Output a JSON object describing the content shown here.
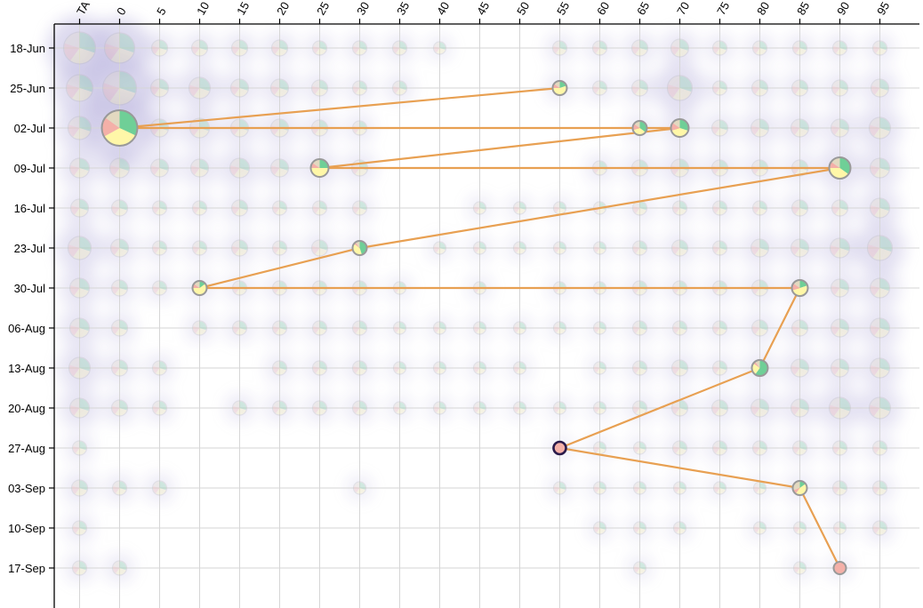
{
  "chart_data": {
    "type": "scatter",
    "title": "",
    "x_categories": [
      "TA",
      "0",
      "5",
      "10",
      "15",
      "20",
      "25",
      "30",
      "35",
      "40",
      "45",
      "50",
      "55",
      "60",
      "65",
      "70",
      "75",
      "80",
      "85",
      "90",
      "95"
    ],
    "y_categories": [
      "18-Jun",
      "25-Jun",
      "02-Jul",
      "09-Jul",
      "16-Jul",
      "23-Jul",
      "30-Jul",
      "06-Aug",
      "13-Aug",
      "20-Aug",
      "27-Aug",
      "03-Sep",
      "10-Sep",
      "17-Sep"
    ],
    "x_axis_position": "top",
    "y_axis_position": "left",
    "grid": true,
    "colors": {
      "green": "#6fcf97",
      "yellow": "#fff7a8",
      "pink": "#f4b0a8",
      "tan": "#e3d9c0",
      "path": "#e8a052",
      "outline": "#999999",
      "current_outline": "#2a1a4a",
      "blur": "#8c82c8"
    },
    "path": [
      {
        "x": "55",
        "y": "25-Jun",
        "r": 8,
        "slices": [
          0.2,
          0.55,
          0.1,
          0.15
        ]
      },
      {
        "x": "0",
        "y": "02-Jul",
        "r": 20,
        "slices": [
          0.32,
          0.35,
          0.18,
          0.15
        ]
      },
      {
        "x": "65",
        "y": "02-Jul",
        "r": 8,
        "slices": [
          0.35,
          0.35,
          0.15,
          0.15
        ]
      },
      {
        "x": "70",
        "y": "02-Jul",
        "r": 10,
        "slices": [
          0.3,
          0.4,
          0.15,
          0.15
        ]
      },
      {
        "x": "25",
        "y": "09-Jul",
        "r": 10,
        "slices": [
          0.25,
          0.5,
          0.1,
          0.15
        ]
      },
      {
        "x": "90",
        "y": "09-Jul",
        "r": 12,
        "slices": [
          0.35,
          0.4,
          0.1,
          0.15
        ]
      },
      {
        "x": "30",
        "y": "23-Jul",
        "r": 8,
        "slices": [
          0.45,
          0.4,
          0.05,
          0.1
        ]
      },
      {
        "x": "10",
        "y": "30-Jul",
        "r": 8,
        "slices": [
          0.15,
          0.6,
          0.1,
          0.15
        ]
      },
      {
        "x": "85",
        "y": "30-Jul",
        "r": 9,
        "slices": [
          0.2,
          0.5,
          0.15,
          0.15
        ]
      },
      {
        "x": "80",
        "y": "13-Aug",
        "r": 9,
        "slices": [
          0.6,
          0.25,
          0.05,
          0.1
        ]
      },
      {
        "x": "55",
        "y": "27-Aug",
        "r": 7,
        "slices": [
          0.0,
          0.0,
          1.0,
          0.0
        ],
        "current": true
      },
      {
        "x": "85",
        "y": "03-Sep",
        "r": 8,
        "slices": [
          0.15,
          0.45,
          0.1,
          0.3
        ]
      },
      {
        "x": "90",
        "y": "17-Sep",
        "r": 7,
        "slices": [
          0.0,
          0.0,
          1.0,
          0.0
        ]
      }
    ],
    "background_points": [
      {
        "x": "TA",
        "y": "18-Jun",
        "r": 18
      },
      {
        "x": "0",
        "y": "18-Jun",
        "r": 17
      },
      {
        "x": "5",
        "y": "18-Jun",
        "r": 9
      },
      {
        "x": "10",
        "y": "18-Jun",
        "r": 9
      },
      {
        "x": "15",
        "y": "18-Jun",
        "r": 9
      },
      {
        "x": "20",
        "y": "18-Jun",
        "r": 9
      },
      {
        "x": "25",
        "y": "18-Jun",
        "r": 8
      },
      {
        "x": "30",
        "y": "18-Jun",
        "r": 8
      },
      {
        "x": "35",
        "y": "18-Jun",
        "r": 8
      },
      {
        "x": "40",
        "y": "18-Jun",
        "r": 7
      },
      {
        "x": "55",
        "y": "18-Jun",
        "r": 8
      },
      {
        "x": "60",
        "y": "18-Jun",
        "r": 8
      },
      {
        "x": "65",
        "y": "18-Jun",
        "r": 9
      },
      {
        "x": "70",
        "y": "18-Jun",
        "r": 10
      },
      {
        "x": "75",
        "y": "18-Jun",
        "r": 8
      },
      {
        "x": "80",
        "y": "18-Jun",
        "r": 8
      },
      {
        "x": "85",
        "y": "18-Jun",
        "r": 8
      },
      {
        "x": "90",
        "y": "18-Jun",
        "r": 8
      },
      {
        "x": "95",
        "y": "18-Jun",
        "r": 8
      },
      {
        "x": "TA",
        "y": "25-Jun",
        "r": 15
      },
      {
        "x": "0",
        "y": "25-Jun",
        "r": 19
      },
      {
        "x": "5",
        "y": "25-Jun",
        "r": 10
      },
      {
        "x": "10",
        "y": "25-Jun",
        "r": 12
      },
      {
        "x": "15",
        "y": "25-Jun",
        "r": 10
      },
      {
        "x": "20",
        "y": "25-Jun",
        "r": 10
      },
      {
        "x": "25",
        "y": "25-Jun",
        "r": 9
      },
      {
        "x": "30",
        "y": "25-Jun",
        "r": 8
      },
      {
        "x": "35",
        "y": "25-Jun",
        "r": 8
      },
      {
        "x": "60",
        "y": "25-Jun",
        "r": 8
      },
      {
        "x": "65",
        "y": "25-Jun",
        "r": 9
      },
      {
        "x": "70",
        "y": "25-Jun",
        "r": 14
      },
      {
        "x": "75",
        "y": "25-Jun",
        "r": 8
      },
      {
        "x": "80",
        "y": "25-Jun",
        "r": 9
      },
      {
        "x": "85",
        "y": "25-Jun",
        "r": 9
      },
      {
        "x": "90",
        "y": "25-Jun",
        "r": 9
      },
      {
        "x": "95",
        "y": "25-Jun",
        "r": 10
      },
      {
        "x": "TA",
        "y": "02-Jul",
        "r": 13
      },
      {
        "x": "5",
        "y": "02-Jul",
        "r": 10
      },
      {
        "x": "10",
        "y": "02-Jul",
        "r": 11
      },
      {
        "x": "15",
        "y": "02-Jul",
        "r": 10
      },
      {
        "x": "20",
        "y": "02-Jul",
        "r": 10
      },
      {
        "x": "25",
        "y": "02-Jul",
        "r": 9
      },
      {
        "x": "30",
        "y": "02-Jul",
        "r": 8
      },
      {
        "x": "75",
        "y": "02-Jul",
        "r": 9
      },
      {
        "x": "80",
        "y": "02-Jul",
        "r": 10
      },
      {
        "x": "85",
        "y": "02-Jul",
        "r": 10
      },
      {
        "x": "90",
        "y": "02-Jul",
        "r": 10
      },
      {
        "x": "95",
        "y": "02-Jul",
        "r": 12
      },
      {
        "x": "TA",
        "y": "09-Jul",
        "r": 11
      },
      {
        "x": "0",
        "y": "09-Jul",
        "r": 11
      },
      {
        "x": "5",
        "y": "09-Jul",
        "r": 10
      },
      {
        "x": "10",
        "y": "09-Jul",
        "r": 10
      },
      {
        "x": "15",
        "y": "09-Jul",
        "r": 11
      },
      {
        "x": "20",
        "y": "09-Jul",
        "r": 10
      },
      {
        "x": "30",
        "y": "09-Jul",
        "r": 9
      },
      {
        "x": "60",
        "y": "09-Jul",
        "r": 8
      },
      {
        "x": "65",
        "y": "09-Jul",
        "r": 9
      },
      {
        "x": "70",
        "y": "09-Jul",
        "r": 10
      },
      {
        "x": "75",
        "y": "09-Jul",
        "r": 9
      },
      {
        "x": "80",
        "y": "09-Jul",
        "r": 9
      },
      {
        "x": "85",
        "y": "09-Jul",
        "r": 9
      },
      {
        "x": "95",
        "y": "09-Jul",
        "r": 11
      },
      {
        "x": "TA",
        "y": "16-Jul",
        "r": 10
      },
      {
        "x": "0",
        "y": "16-Jul",
        "r": 9
      },
      {
        "x": "5",
        "y": "16-Jul",
        "r": 8
      },
      {
        "x": "10",
        "y": "16-Jul",
        "r": 8
      },
      {
        "x": "15",
        "y": "16-Jul",
        "r": 9
      },
      {
        "x": "20",
        "y": "16-Jul",
        "r": 8
      },
      {
        "x": "25",
        "y": "16-Jul",
        "r": 8
      },
      {
        "x": "30",
        "y": "16-Jul",
        "r": 8
      },
      {
        "x": "45",
        "y": "16-Jul",
        "r": 7
      },
      {
        "x": "50",
        "y": "16-Jul",
        "r": 7
      },
      {
        "x": "55",
        "y": "16-Jul",
        "r": 7
      },
      {
        "x": "60",
        "y": "16-Jul",
        "r": 7
      },
      {
        "x": "65",
        "y": "16-Jul",
        "r": 8
      },
      {
        "x": "70",
        "y": "16-Jul",
        "r": 8
      },
      {
        "x": "75",
        "y": "16-Jul",
        "r": 8
      },
      {
        "x": "80",
        "y": "16-Jul",
        "r": 8
      },
      {
        "x": "85",
        "y": "16-Jul",
        "r": 9
      },
      {
        "x": "90",
        "y": "16-Jul",
        "r": 9
      },
      {
        "x": "95",
        "y": "16-Jul",
        "r": 11
      },
      {
        "x": "TA",
        "y": "23-Jul",
        "r": 13
      },
      {
        "x": "0",
        "y": "23-Jul",
        "r": 10
      },
      {
        "x": "5",
        "y": "23-Jul",
        "r": 8
      },
      {
        "x": "10",
        "y": "23-Jul",
        "r": 8
      },
      {
        "x": "15",
        "y": "23-Jul",
        "r": 9
      },
      {
        "x": "20",
        "y": "23-Jul",
        "r": 8
      },
      {
        "x": "25",
        "y": "23-Jul",
        "r": 9
      },
      {
        "x": "40",
        "y": "23-Jul",
        "r": 7
      },
      {
        "x": "45",
        "y": "23-Jul",
        "r": 7
      },
      {
        "x": "50",
        "y": "23-Jul",
        "r": 7
      },
      {
        "x": "55",
        "y": "23-Jul",
        "r": 7
      },
      {
        "x": "60",
        "y": "23-Jul",
        "r": 7
      },
      {
        "x": "65",
        "y": "23-Jul",
        "r": 8
      },
      {
        "x": "70",
        "y": "23-Jul",
        "r": 9
      },
      {
        "x": "75",
        "y": "23-Jul",
        "r": 8
      },
      {
        "x": "80",
        "y": "23-Jul",
        "r": 10
      },
      {
        "x": "85",
        "y": "23-Jul",
        "r": 10
      },
      {
        "x": "90",
        "y": "23-Jul",
        "r": 11
      },
      {
        "x": "95",
        "y": "23-Jul",
        "r": 14
      },
      {
        "x": "TA",
        "y": "30-Jul",
        "r": 11
      },
      {
        "x": "0",
        "y": "30-Jul",
        "r": 9
      },
      {
        "x": "5",
        "y": "30-Jul",
        "r": 8
      },
      {
        "x": "15",
        "y": "30-Jul",
        "r": 8
      },
      {
        "x": "20",
        "y": "30-Jul",
        "r": 8
      },
      {
        "x": "25",
        "y": "30-Jul",
        "r": 8
      },
      {
        "x": "30",
        "y": "30-Jul",
        "r": 8
      },
      {
        "x": "35",
        "y": "30-Jul",
        "r": 7
      },
      {
        "x": "45",
        "y": "30-Jul",
        "r": 7
      },
      {
        "x": "55",
        "y": "30-Jul",
        "r": 7
      },
      {
        "x": "60",
        "y": "30-Jul",
        "r": 7
      },
      {
        "x": "65",
        "y": "30-Jul",
        "r": 8
      },
      {
        "x": "70",
        "y": "30-Jul",
        "r": 8
      },
      {
        "x": "75",
        "y": "30-Jul",
        "r": 8
      },
      {
        "x": "80",
        "y": "30-Jul",
        "r": 9
      },
      {
        "x": "90",
        "y": "30-Jul",
        "r": 10
      },
      {
        "x": "95",
        "y": "30-Jul",
        "r": 11
      },
      {
        "x": "TA",
        "y": "06-Aug",
        "r": 11
      },
      {
        "x": "0",
        "y": "06-Aug",
        "r": 9
      },
      {
        "x": "10",
        "y": "06-Aug",
        "r": 8
      },
      {
        "x": "15",
        "y": "06-Aug",
        "r": 8
      },
      {
        "x": "20",
        "y": "06-Aug",
        "r": 8
      },
      {
        "x": "25",
        "y": "06-Aug",
        "r": 8
      },
      {
        "x": "30",
        "y": "06-Aug",
        "r": 8
      },
      {
        "x": "35",
        "y": "06-Aug",
        "r": 7
      },
      {
        "x": "40",
        "y": "06-Aug",
        "r": 7
      },
      {
        "x": "45",
        "y": "06-Aug",
        "r": 7
      },
      {
        "x": "50",
        "y": "06-Aug",
        "r": 7
      },
      {
        "x": "55",
        "y": "06-Aug",
        "r": 7
      },
      {
        "x": "60",
        "y": "06-Aug",
        "r": 7
      },
      {
        "x": "65",
        "y": "06-Aug",
        "r": 8
      },
      {
        "x": "70",
        "y": "06-Aug",
        "r": 8
      },
      {
        "x": "75",
        "y": "06-Aug",
        "r": 8
      },
      {
        "x": "80",
        "y": "06-Aug",
        "r": 9
      },
      {
        "x": "85",
        "y": "06-Aug",
        "r": 9
      },
      {
        "x": "90",
        "y": "06-Aug",
        "r": 10
      },
      {
        "x": "95",
        "y": "06-Aug",
        "r": 11
      },
      {
        "x": "TA",
        "y": "13-Aug",
        "r": 12
      },
      {
        "x": "0",
        "y": "13-Aug",
        "r": 9
      },
      {
        "x": "5",
        "y": "13-Aug",
        "r": 8
      },
      {
        "x": "20",
        "y": "13-Aug",
        "r": 8
      },
      {
        "x": "25",
        "y": "13-Aug",
        "r": 8
      },
      {
        "x": "30",
        "y": "13-Aug",
        "r": 8
      },
      {
        "x": "35",
        "y": "13-Aug",
        "r": 7
      },
      {
        "x": "40",
        "y": "13-Aug",
        "r": 7
      },
      {
        "x": "45",
        "y": "13-Aug",
        "r": 7
      },
      {
        "x": "50",
        "y": "13-Aug",
        "r": 7
      },
      {
        "x": "60",
        "y": "13-Aug",
        "r": 7
      },
      {
        "x": "65",
        "y": "13-Aug",
        "r": 8
      },
      {
        "x": "70",
        "y": "13-Aug",
        "r": 9
      },
      {
        "x": "75",
        "y": "13-Aug",
        "r": 8
      },
      {
        "x": "85",
        "y": "13-Aug",
        "r": 10
      },
      {
        "x": "90",
        "y": "13-Aug",
        "r": 10
      },
      {
        "x": "95",
        "y": "13-Aug",
        "r": 11
      },
      {
        "x": "TA",
        "y": "20-Aug",
        "r": 11
      },
      {
        "x": "0",
        "y": "20-Aug",
        "r": 9
      },
      {
        "x": "5",
        "y": "20-Aug",
        "r": 8
      },
      {
        "x": "15",
        "y": "20-Aug",
        "r": 8
      },
      {
        "x": "20",
        "y": "20-Aug",
        "r": 8
      },
      {
        "x": "25",
        "y": "20-Aug",
        "r": 8
      },
      {
        "x": "30",
        "y": "20-Aug",
        "r": 8
      },
      {
        "x": "35",
        "y": "20-Aug",
        "r": 7
      },
      {
        "x": "40",
        "y": "20-Aug",
        "r": 7
      },
      {
        "x": "45",
        "y": "20-Aug",
        "r": 7
      },
      {
        "x": "50",
        "y": "20-Aug",
        "r": 7
      },
      {
        "x": "55",
        "y": "20-Aug",
        "r": 7
      },
      {
        "x": "60",
        "y": "20-Aug",
        "r": 7
      },
      {
        "x": "65",
        "y": "20-Aug",
        "r": 8
      },
      {
        "x": "70",
        "y": "20-Aug",
        "r": 9
      },
      {
        "x": "75",
        "y": "20-Aug",
        "r": 9
      },
      {
        "x": "80",
        "y": "20-Aug",
        "r": 10
      },
      {
        "x": "85",
        "y": "20-Aug",
        "r": 10
      },
      {
        "x": "90",
        "y": "20-Aug",
        "r": 12
      },
      {
        "x": "95",
        "y": "20-Aug",
        "r": 12
      },
      {
        "x": "TA",
        "y": "27-Aug",
        "r": 8
      },
      {
        "x": "60",
        "y": "27-Aug",
        "r": 7
      },
      {
        "x": "65",
        "y": "27-Aug",
        "r": 7
      },
      {
        "x": "70",
        "y": "27-Aug",
        "r": 8
      },
      {
        "x": "75",
        "y": "27-Aug",
        "r": 8
      },
      {
        "x": "80",
        "y": "27-Aug",
        "r": 8
      },
      {
        "x": "85",
        "y": "27-Aug",
        "r": 8
      },
      {
        "x": "90",
        "y": "27-Aug",
        "r": 8
      },
      {
        "x": "95",
        "y": "27-Aug",
        "r": 8
      },
      {
        "x": "TA",
        "y": "03-Sep",
        "r": 9
      },
      {
        "x": "0",
        "y": "03-Sep",
        "r": 8
      },
      {
        "x": "5",
        "y": "03-Sep",
        "r": 8
      },
      {
        "x": "30",
        "y": "03-Sep",
        "r": 7
      },
      {
        "x": "55",
        "y": "03-Sep",
        "r": 7
      },
      {
        "x": "60",
        "y": "03-Sep",
        "r": 7
      },
      {
        "x": "65",
        "y": "03-Sep",
        "r": 7
      },
      {
        "x": "70",
        "y": "03-Sep",
        "r": 7
      },
      {
        "x": "75",
        "y": "03-Sep",
        "r": 7
      },
      {
        "x": "80",
        "y": "03-Sep",
        "r": 7
      },
      {
        "x": "90",
        "y": "03-Sep",
        "r": 8
      },
      {
        "x": "95",
        "y": "03-Sep",
        "r": 8
      },
      {
        "x": "TA",
        "y": "10-Sep",
        "r": 8
      },
      {
        "x": "60",
        "y": "10-Sep",
        "r": 7
      },
      {
        "x": "65",
        "y": "10-Sep",
        "r": 7
      },
      {
        "x": "70",
        "y": "10-Sep",
        "r": 7
      },
      {
        "x": "80",
        "y": "10-Sep",
        "r": 7
      },
      {
        "x": "85",
        "y": "10-Sep",
        "r": 7
      },
      {
        "x": "90",
        "y": "10-Sep",
        "r": 7
      },
      {
        "x": "95",
        "y": "10-Sep",
        "r": 8
      },
      {
        "x": "TA",
        "y": "17-Sep",
        "r": 8
      },
      {
        "x": "0",
        "y": "17-Sep",
        "r": 8
      },
      {
        "x": "65",
        "y": "17-Sep",
        "r": 7
      },
      {
        "x": "85",
        "y": "17-Sep",
        "r": 7
      }
    ]
  }
}
